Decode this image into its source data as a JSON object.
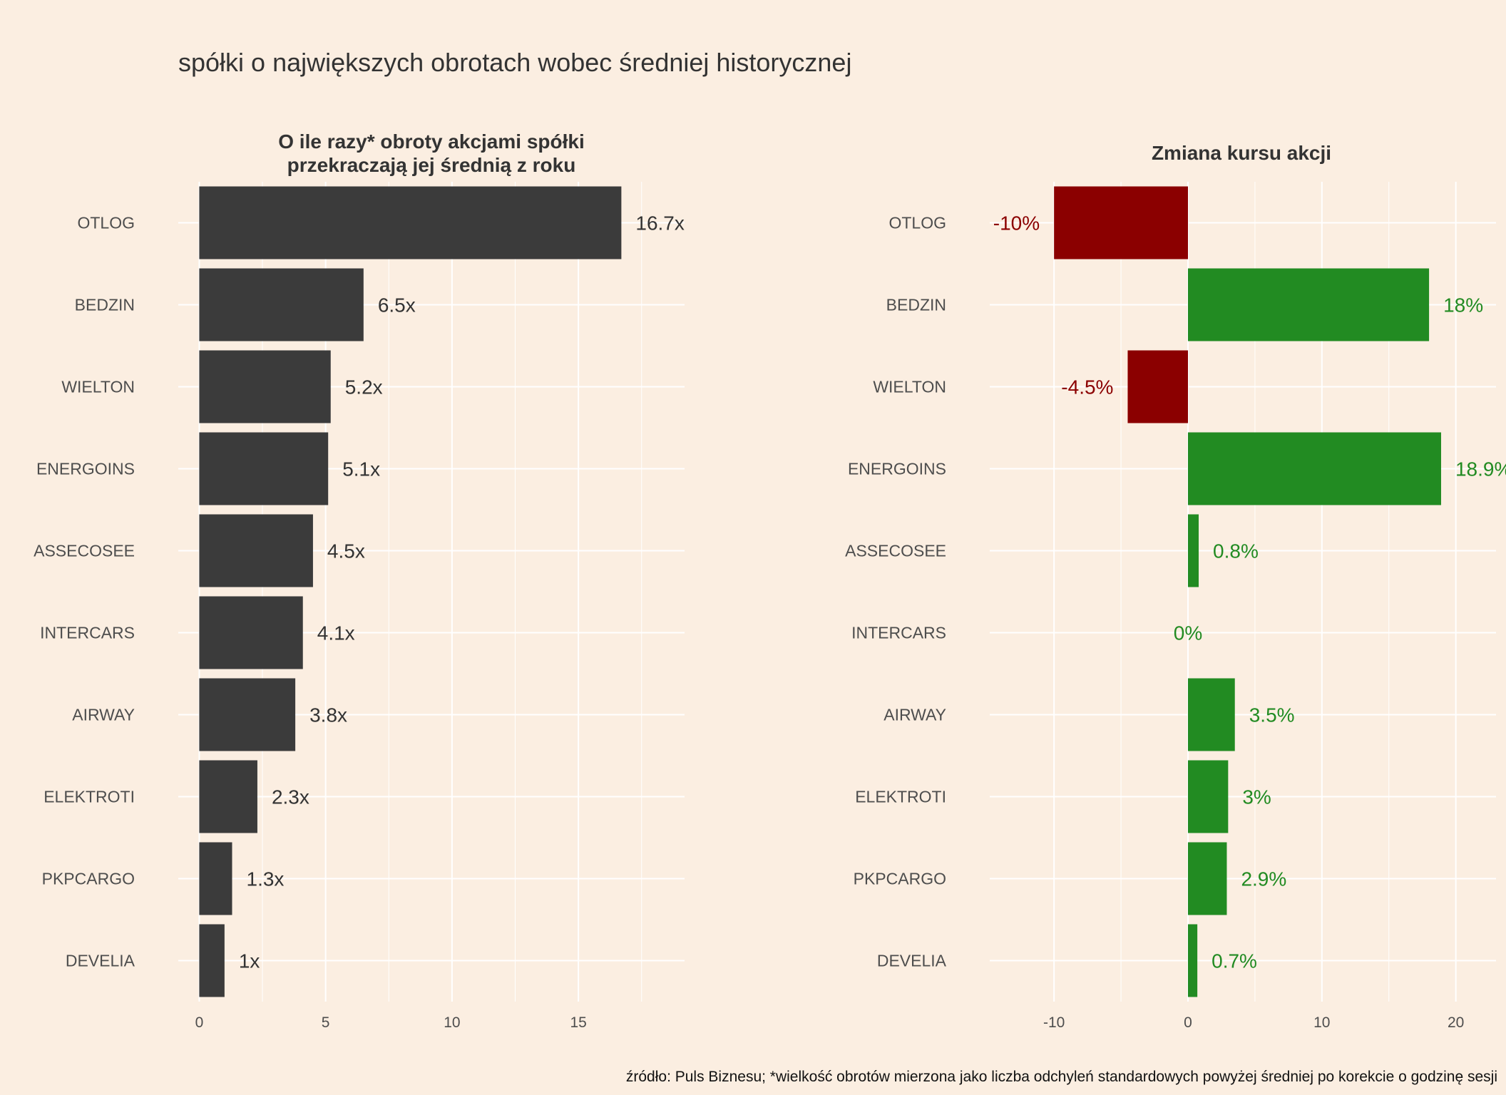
{
  "title": "spółki o największych obrotach wobec średniej historycznej",
  "caption": "źródło: Puls Biznesu; *wielkość obrotów mierzona jako liczba odchyleń standardowych powyżej średniej po korekcie o godzinę sesji",
  "colors": {
    "background": "#FBEEE1",
    "bar_dark": "#3B3B3B",
    "positive": "#228B22",
    "negative": "#8B0000",
    "grid": "#FFFFFF"
  },
  "chart_data": [
    {
      "type": "bar",
      "orientation": "horizontal",
      "title_lines": [
        "O ile razy* obroty akcjami spółki",
        "przekraczają jej średnią z roku"
      ],
      "categories": [
        "OTLOG",
        "BEDZIN",
        "WIELTON",
        "ENERGOINS",
        "ASSECOSEE",
        "INTERCARS",
        "AIRWAY",
        "ELEKTROTI",
        "PKPCARGO",
        "DEVELIA"
      ],
      "values": [
        16.7,
        6.5,
        5.2,
        5.1,
        4.5,
        4.1,
        3.8,
        2.3,
        1.3,
        1.0
      ],
      "value_labels": [
        "16.7x",
        "6.5x",
        "5.2x",
        "5.1x",
        "4.5x",
        "4.1x",
        "3.8x",
        "2.3x",
        "1.3x",
        "1x"
      ],
      "xlim": [
        -0.83,
        19.2
      ],
      "xticks": [
        0,
        5,
        10,
        15
      ],
      "xtick_labels": [
        "0",
        "5",
        "10",
        "15"
      ],
      "minor_ticks": [
        2.5,
        7.5,
        12.5,
        17.5
      ],
      "grid": true,
      "legend": "none"
    },
    {
      "type": "bar",
      "orientation": "horizontal",
      "title_lines": [
        "Zmiana kursu akcji"
      ],
      "categories": [
        "OTLOG",
        "BEDZIN",
        "WIELTON",
        "ENERGOINS",
        "ASSECOSEE",
        "INTERCARS",
        "AIRWAY",
        "ELEKTROTI",
        "PKPCARGO",
        "DEVELIA"
      ],
      "values": [
        -10,
        18,
        -4.5,
        18.9,
        0.8,
        0,
        3.5,
        3,
        2.9,
        0.7
      ],
      "value_labels": [
        "-10%",
        "18%",
        "-4.5%",
        "18.9%",
        "0.8%",
        "0%",
        "3.5%",
        "3%",
        "2.9%",
        "0.7%"
      ],
      "xlim": [
        -14.8,
        23.0
      ],
      "xticks": [
        -10,
        0,
        10,
        20
      ],
      "xtick_labels": [
        "-10",
        "0",
        "10",
        "20"
      ],
      "minor_ticks": [
        -5,
        5,
        15
      ],
      "grid": true,
      "legend": "none"
    }
  ]
}
